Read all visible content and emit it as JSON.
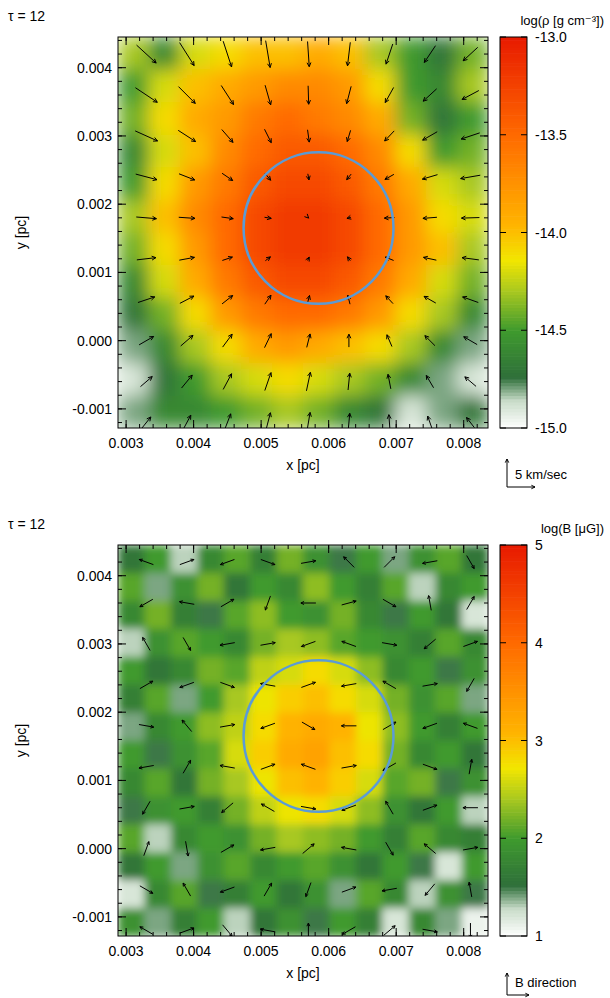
{
  "chart_data": [
    {
      "type": "heatmap",
      "title": "τ = 12",
      "xlabel": "x [pc]",
      "ylabel": "y [pc]",
      "xlim": [
        0.00288,
        0.00836
      ],
      "ylim": [
        -0.00128,
        0.00445
      ],
      "xticks": [
        0.003,
        0.004,
        0.005,
        0.006,
        0.007,
        0.008
      ],
      "yticks": [
        -0.001,
        {
          "value": 0,
          "label": "0.000"
        },
        0.001,
        0.002,
        0.003,
        0.004
      ],
      "colorbar": {
        "title": "log(ρ [g cm⁻³])",
        "range": [
          -15,
          -13
        ],
        "ticks": [
          {
            "value": -13,
            "label": "-13.0"
          },
          -13.5,
          {
            "value": -14,
            "label": "-14.0"
          },
          -14.5,
          {
            "value": -15,
            "label": "-15.0"
          }
        ]
      },
      "cells": [
        [
          -14.3,
          -14.6,
          -14.2,
          -14.1,
          -14.0,
          -14.0,
          -13.9,
          -14.0,
          -14.3,
          -14.5,
          -14.7,
          -14.4
        ],
        [
          -14.5,
          -14.2,
          -14.0,
          -13.9,
          -13.8,
          -13.7,
          -13.7,
          -13.8,
          -14.1,
          -14.5,
          -14.6,
          -14.3
        ],
        [
          -14.4,
          -14.1,
          -13.9,
          -13.8,
          -13.6,
          -13.5,
          -13.6,
          -13.7,
          -13.9,
          -14.4,
          -14.7,
          -14.5
        ],
        [
          -14.6,
          -14.2,
          -14.0,
          -13.7,
          -13.5,
          -13.4,
          -13.4,
          -13.5,
          -13.7,
          -14.1,
          -14.5,
          -14.4
        ],
        [
          -14.5,
          -14.1,
          -13.8,
          -13.6,
          -13.4,
          -13.3,
          -13.3,
          -13.4,
          -13.6,
          -13.9,
          -14.2,
          -14.3
        ],
        [
          -14.3,
          -14.0,
          -13.7,
          -13.5,
          -13.3,
          -13.2,
          -13.2,
          -13.3,
          -13.5,
          -13.8,
          -14.1,
          -14.2
        ],
        [
          -14.4,
          -14.1,
          -13.8,
          -13.5,
          -13.3,
          -13.2,
          -13.2,
          -13.3,
          -13.5,
          -13.8,
          -14.0,
          -14.3
        ],
        [
          -14.6,
          -14.2,
          -13.9,
          -13.6,
          -13.4,
          -13.3,
          -13.3,
          -13.4,
          -13.6,
          -13.9,
          -14.2,
          -14.4
        ],
        [
          -14.7,
          -14.4,
          -14.1,
          -13.8,
          -13.6,
          -13.5,
          -13.5,
          -13.6,
          -13.8,
          -14.1,
          -14.3,
          -14.6
        ],
        [
          -14.8,
          -14.6,
          -14.3,
          -14.1,
          -13.9,
          -13.8,
          -13.9,
          -14.0,
          -14.1,
          -14.3,
          -14.6,
          -14.8
        ],
        [
          -14.9,
          -14.7,
          -14.5,
          -14.3,
          -14.2,
          -14.1,
          -14.2,
          -14.3,
          -14.4,
          -14.6,
          -14.8,
          -14.9
        ],
        [
          -14.8,
          -14.6,
          -14.6,
          -14.5,
          -14.4,
          -14.3,
          -14.4,
          -14.6,
          -14.7,
          -14.9,
          -14.8,
          -14.7
        ]
      ],
      "circle": {
        "x": 0.00585,
        "y": 0.00165,
        "r": 0.00111
      },
      "vectors": {
        "x": [
          0.0033,
          0.0039,
          0.0045,
          0.0051,
          0.0057,
          0.0063,
          0.0069,
          0.0075,
          0.0081
        ],
        "y": [
          0.0042,
          0.0036,
          0.003,
          0.0024,
          0.0018,
          0.0012,
          0.0006,
          0.0,
          -0.0006,
          -0.0012
        ],
        "vx": [
          [
            3.5,
            2.6,
            1.5,
            0.8,
            0.3,
            -0.5,
            -1.2,
            -2.0,
            -2.6
          ],
          [
            3.9,
            3.0,
            2.2,
            1.0,
            0.1,
            -0.8,
            -1.5,
            -2.4,
            -3.0
          ],
          [
            4.0,
            3.1,
            2.0,
            1.2,
            0.3,
            -0.6,
            -1.7,
            -2.6,
            -3.3
          ],
          [
            3.8,
            2.8,
            1.9,
            1.0,
            0.2,
            -0.8,
            -1.6,
            -2.7,
            -3.5
          ],
          [
            3.6,
            2.9,
            2.1,
            1.2,
            0.1,
            -0.7,
            -1.8,
            -2.5,
            -3.2
          ],
          [
            3.4,
            2.7,
            1.8,
            0.9,
            0.3,
            -0.5,
            -1.5,
            -2.3,
            -3.0
          ],
          [
            3.0,
            2.5,
            1.9,
            1.1,
            0.4,
            -0.4,
            -1.3,
            -2.1,
            -2.8
          ],
          [
            2.6,
            2.2,
            1.7,
            1.2,
            0.6,
            0.0,
            -0.9,
            -1.8,
            -2.4
          ],
          [
            2.1,
            1.9,
            1.5,
            1.1,
            0.7,
            0.3,
            -0.5,
            -1.3,
            -2.0
          ],
          [
            1.6,
            1.4,
            1.2,
            0.9,
            0.6,
            0.3,
            -0.2,
            -0.8,
            -1.4
          ]
        ],
        "vy": [
          [
            -3.2,
            -4.1,
            -4.6,
            -4.8,
            -4.5,
            -4.2,
            -3.6,
            -3.0,
            -2.4
          ],
          [
            -2.6,
            -3.0,
            -3.4,
            -3.5,
            -3.3,
            -3.1,
            -2.7,
            -2.2,
            -1.6
          ],
          [
            -1.8,
            -2.0,
            -2.3,
            -2.4,
            -2.2,
            -2.0,
            -1.8,
            -1.5,
            -1.1
          ],
          [
            -1.0,
            -1.1,
            -1.3,
            -1.2,
            -1.1,
            -1.0,
            -0.9,
            -0.8,
            -0.6
          ],
          [
            -0.3,
            -0.2,
            -0.3,
            -0.2,
            -0.1,
            -0.2,
            -0.1,
            -0.2,
            -0.1
          ],
          [
            0.4,
            0.5,
            0.6,
            0.7,
            0.6,
            0.7,
            0.6,
            0.5,
            0.4
          ],
          [
            1.0,
            1.3,
            1.5,
            1.6,
            1.5,
            1.6,
            1.4,
            1.2,
            1.0
          ],
          [
            1.5,
            1.9,
            2.3,
            2.5,
            2.4,
            2.3,
            2.1,
            1.8,
            1.4
          ],
          [
            1.8,
            2.3,
            2.8,
            3.2,
            3.3,
            3.0,
            2.6,
            2.2,
            1.7
          ],
          [
            2.0,
            2.6,
            3.1,
            3.5,
            3.6,
            3.3,
            2.8,
            2.3,
            1.8
          ]
        ]
      },
      "key": {
        "label": "5 km/sec",
        "value": 5
      }
    },
    {
      "type": "heatmap",
      "title": "τ = 12",
      "xlabel": "x [pc]",
      "ylabel": "y [pc]",
      "xlim": [
        0.00288,
        0.00836
      ],
      "ylim": [
        -0.00128,
        0.00445
      ],
      "xticks": [
        0.003,
        0.004,
        0.005,
        0.006,
        0.007,
        0.008
      ],
      "yticks": [
        -0.001,
        {
          "value": 0,
          "label": "0.000"
        },
        0.001,
        0.002,
        0.003,
        0.004
      ],
      "colorbar": {
        "title": "log(B [μG])",
        "range": [
          1,
          5
        ],
        "ticks": [
          1,
          2,
          3,
          4,
          5
        ]
      },
      "cells": [
        [
          1.6,
          2.0,
          1.3,
          1.8,
          2.1,
          1.7,
          2.2,
          1.9,
          1.5,
          2.0,
          1.4,
          1.9,
          2.1,
          1.6
        ],
        [
          2.1,
          1.4,
          1.9,
          2.2,
          1.6,
          2.0,
          1.8,
          2.3,
          2.0,
          1.7,
          2.1,
          1.3,
          1.8,
          2.0
        ],
        [
          1.8,
          2.2,
          1.7,
          1.5,
          2.1,
          2.3,
          2.0,
          1.9,
          2.2,
          1.8,
          1.5,
          2.0,
          1.6,
          1.2
        ],
        [
          1.3,
          1.9,
          2.1,
          2.0,
          1.8,
          2.2,
          2.4,
          2.3,
          2.1,
          2.0,
          1.9,
          1.7,
          2.1,
          1.8
        ],
        [
          2.0,
          1.6,
          1.8,
          2.2,
          2.1,
          2.5,
          2.6,
          2.8,
          2.6,
          2.3,
          1.8,
          2.0,
          1.5,
          1.9
        ],
        [
          1.7,
          2.1,
          1.4,
          2.0,
          2.4,
          2.7,
          2.9,
          3.0,
          2.8,
          2.6,
          2.2,
          1.9,
          2.1,
          1.4
        ],
        [
          1.4,
          1.8,
          2.0,
          2.3,
          2.5,
          2.8,
          3.1,
          3.2,
          3.1,
          2.7,
          2.3,
          2.0,
          1.7,
          2.0
        ],
        [
          2.0,
          1.5,
          1.9,
          2.1,
          2.6,
          2.9,
          3.2,
          3.3,
          3.0,
          2.8,
          2.2,
          1.8,
          2.0,
          1.6
        ],
        [
          1.8,
          2.1,
          1.6,
          2.2,
          2.4,
          2.7,
          3.0,
          3.1,
          2.9,
          2.6,
          2.1,
          2.2,
          1.5,
          1.9
        ],
        [
          1.5,
          1.9,
          2.0,
          1.7,
          2.2,
          2.5,
          2.7,
          2.8,
          2.6,
          2.3,
          1.9,
          1.6,
          2.0,
          1.3
        ],
        [
          2.1,
          1.3,
          1.8,
          2.0,
          1.9,
          2.2,
          2.4,
          2.3,
          2.2,
          2.0,
          1.7,
          2.1,
          1.8,
          1.7
        ],
        [
          1.6,
          2.0,
          1.4,
          1.9,
          2.1,
          1.8,
          2.0,
          2.1,
          1.9,
          1.6,
          2.0,
          1.5,
          1.2,
          2.0
        ],
        [
          1.2,
          1.8,
          2.1,
          1.5,
          1.7,
          2.0,
          1.6,
          1.9,
          1.4,
          2.1,
          1.8,
          1.3,
          1.9,
          1.5
        ],
        [
          1.9,
          1.4,
          1.7,
          2.0,
          1.3,
          1.6,
          1.9,
          1.5,
          2.0,
          1.7,
          1.2,
          1.8,
          1.4,
          1.1
        ]
      ],
      "circle": {
        "x": 0.00585,
        "y": 0.00165,
        "r": 0.00111
      },
      "vectors": {
        "x": [
          0.0033,
          0.0039,
          0.0045,
          0.0051,
          0.0057,
          0.0063,
          0.0069,
          0.0075,
          0.0081
        ],
        "y": [
          0.0042,
          0.0036,
          0.003,
          0.0024,
          0.0018,
          0.0012,
          0.0006,
          0.0,
          -0.0006,
          -0.0012
        ],
        "angle": [
          [
            160,
            20,
            200,
            340,
            10,
            135,
            45,
            190,
            300
          ],
          [
            210,
            170,
            30,
            250,
            180,
            15,
            330,
            100,
            60
          ],
          [
            120,
            300,
            190,
            10,
            200,
            160,
            350,
            220,
            20
          ],
          [
            30,
            200,
            340,
            170,
            20,
            190,
            150,
            10,
            240
          ],
          [
            350,
            130,
            10,
            200,
            330,
            180,
            30,
            200,
            160
          ],
          [
            190,
            60,
            170,
            20,
            160,
            10,
            210,
            340,
            80
          ],
          [
            240,
            10,
            220,
            150,
            350,
            200,
            120,
            20,
            180
          ],
          [
            70,
            280,
            30,
            190,
            40,
            170,
            300,
            140,
            10
          ],
          [
            330,
            120,
            200,
            60,
            250,
            20,
            190,
            230,
            100
          ],
          [
            150,
            20,
            310,
            170,
            90,
            210,
            40,
            350,
            270
          ]
        ]
      },
      "key": {
        "label": "B direction"
      }
    }
  ]
}
